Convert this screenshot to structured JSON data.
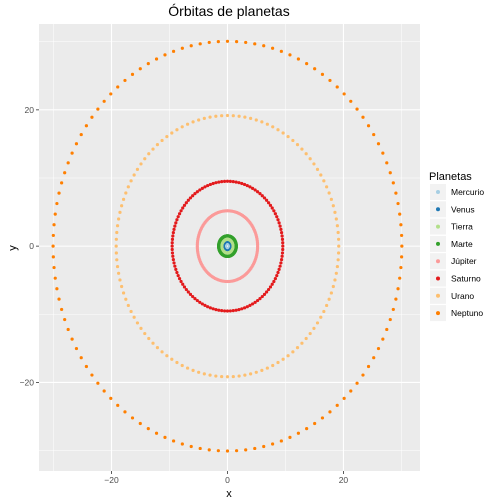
{
  "chart_data": {
    "type": "scatter",
    "title": "Órbitas de planetas",
    "xlabel": "x",
    "ylabel": "y",
    "xlim": [
      -32.5,
      33.2
    ],
    "ylim": [
      -33.0,
      32.6
    ],
    "x_ticks": [
      -20,
      0,
      20
    ],
    "y_ticks": [
      -20,
      0,
      20
    ],
    "grid": true,
    "legend_position": "right",
    "legend_title": "Planetas",
    "panel_background": "#ebebeb",
    "grid_color": "#ffffff",
    "series": [
      {
        "name": "Mercurio",
        "color": "#a6cee3",
        "rx": 0.4,
        "ry": 0.39,
        "points": 120
      },
      {
        "name": "Venus",
        "color": "#1f78b4",
        "rx": 0.72,
        "ry": 0.72,
        "points": 120
      },
      {
        "name": "Tierra",
        "color": "#b2df8a",
        "rx": 1.0,
        "ry": 1.0,
        "points": 120
      },
      {
        "name": "Marte",
        "color": "#33a02c",
        "rx": 1.52,
        "ry": 1.51,
        "points": 120
      },
      {
        "name": "Júpiter",
        "color": "#fb9a99",
        "rx": 5.2,
        "ry": 5.19,
        "points": 120
      },
      {
        "name": "Saturno",
        "color": "#e31a1c",
        "rx": 9.54,
        "ry": 9.52,
        "points": 120
      },
      {
        "name": "Urano",
        "color": "#fdbf6f",
        "rx": 19.19,
        "ry": 19.17,
        "points": 120
      },
      {
        "name": "Neptuno",
        "color": "#ff7f00",
        "rx": 30.07,
        "ry": 30.06,
        "points": 120
      }
    ]
  }
}
